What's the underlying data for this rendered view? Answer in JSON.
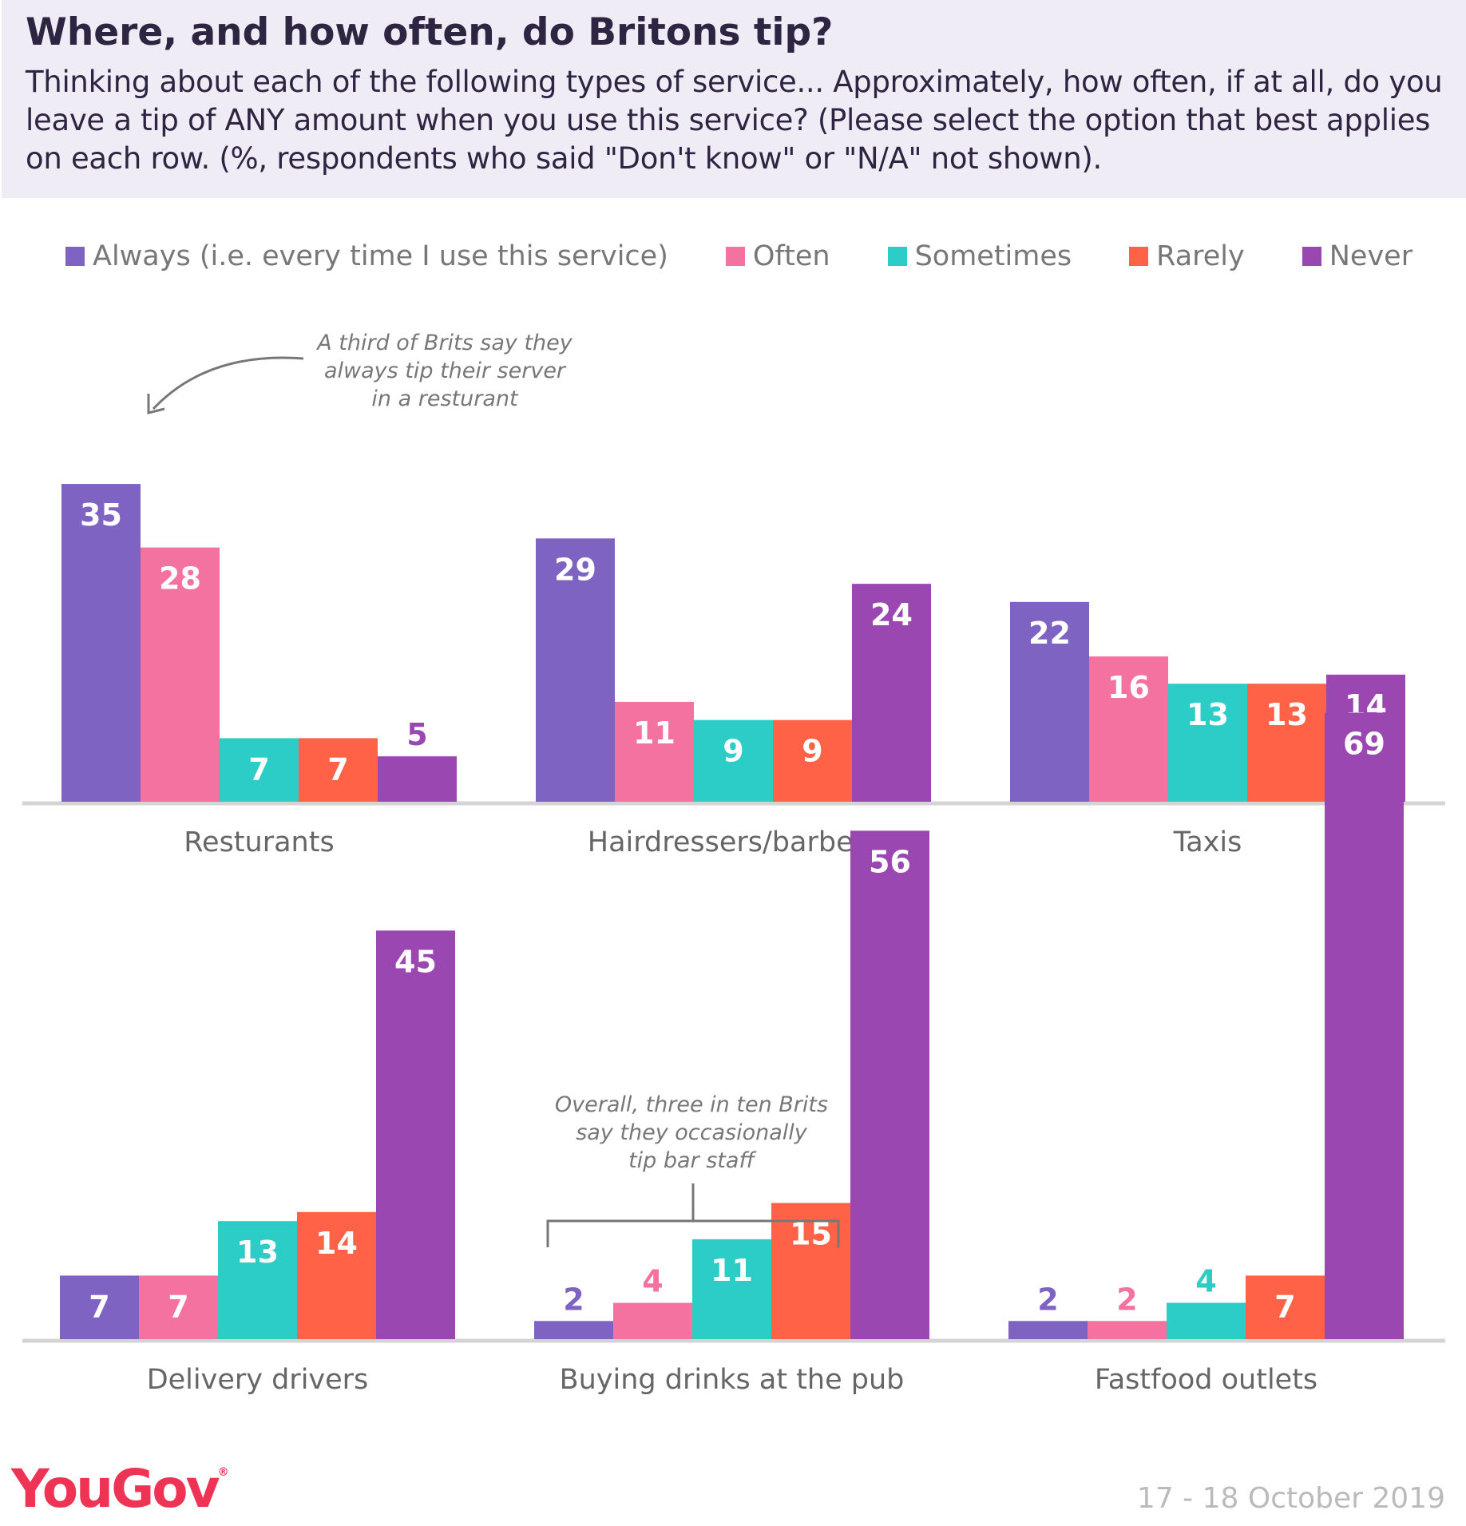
{
  "header": {
    "title": "Where, and how often, do Britons tip?",
    "subtitle": "Thinking about each of the following types of service... Approximately, how often, if at all, do you leave a tip of ANY amount when you use this service? (Please select the option that best applies on each row. (%, respondents who said \"Don't know\" or \"N/A\" not shown)."
  },
  "legend": [
    {
      "label": "Always (i.e. every time I use this service)",
      "color": "#7e63c3"
    },
    {
      "label": "Often",
      "color": "#f372a0"
    },
    {
      "label": "Sometimes",
      "color": "#2bcdc6"
    },
    {
      "label": "Rarely",
      "color": "#ff6247"
    },
    {
      "label": "Never",
      "color": "#9b47b2"
    }
  ],
  "chart_data": {
    "type": "bar",
    "series": [
      {
        "name": "Always (i.e. every time I use this service)",
        "color": "#7e63c3",
        "values": [
          35,
          29,
          22,
          7,
          2,
          2
        ]
      },
      {
        "name": "Often",
        "color": "#f372a0",
        "values": [
          28,
          11,
          16,
          7,
          4,
          2
        ]
      },
      {
        "name": "Sometimes",
        "color": "#2bcdc6",
        "values": [
          7,
          9,
          13,
          13,
          11,
          4
        ]
      },
      {
        "name": "Rarely",
        "color": "#ff6247",
        "values": [
          7,
          9,
          13,
          14,
          15,
          7
        ]
      },
      {
        "name": "Never",
        "color": "#9b47b2",
        "values": [
          5,
          24,
          14,
          45,
          56,
          69
        ]
      }
    ],
    "categories": [
      "Resturants",
      "Hairdressers/barbers",
      "Taxis",
      "Delivery drivers",
      "Buying drinks at the pub",
      "Fastfood outlets"
    ],
    "annotations": [
      {
        "text": [
          "A third of Brits say they",
          "always tip their server",
          "in a resturant"
        ],
        "category": "Resturants"
      },
      {
        "text": [
          "Overall, three in ten Brits",
          "say they occasionally",
          "tip bar staff"
        ],
        "category": "Buying drinks at the pub"
      }
    ],
    "legend_position": "top",
    "grid": false,
    "ylim": [
      0,
      70
    ]
  },
  "footer": {
    "brand": "YouGov",
    "registered": "®",
    "date": "17 - 18 October 2019"
  }
}
